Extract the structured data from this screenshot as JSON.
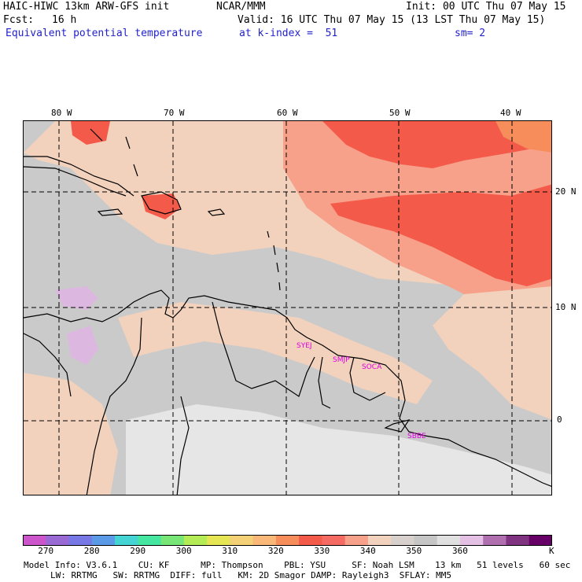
{
  "header": {
    "model": "HAIC-HIWC 13km ARW-GFS init",
    "org": "NCAR/MMM",
    "init": "Init: 00 UTC Thu 07 May 15",
    "fcst_label": "Fcst:",
    "fcst_value": "16 h",
    "valid": "Valid: 16 UTC Thu 07 May 15 (13 LST Thu 07 May 15)",
    "field": "Equivalent potential temperature",
    "level": "at k-index =  51",
    "smooth": "sm= 2"
  },
  "map": {
    "lon_labels": [
      "80 W",
      "70 W",
      "60 W",
      "50 W",
      "40 W"
    ],
    "lat_labels": [
      "20 N",
      "10 N",
      "0"
    ],
    "stations": [
      "SYEJ",
      "SMJP",
      "SOCA",
      "SBBE"
    ]
  },
  "colorbar": {
    "colors": [
      "#cc55cc",
      "#9a6ad4",
      "#7777e6",
      "#5a9ae6",
      "#44d4d4",
      "#44e6a0",
      "#77e677",
      "#b4ec55",
      "#e6e655",
      "#f4d077",
      "#f9b877",
      "#f78d5a",
      "#f45a4a",
      "#f66a64",
      "#f7a08a",
      "#f2d2bc",
      "#d8d0cc",
      "#c6c6c6",
      "#e0e0e0",
      "#e4c0e4",
      "#b070b0",
      "#803380",
      "#660066"
    ],
    "labels": [
      "270",
      "280",
      "290",
      "300",
      "310",
      "320",
      "330",
      "340",
      "350",
      "360"
    ],
    "units": "K"
  },
  "footer": {
    "line1": "Model Info: V3.6.1    CU: KF      MP: Thompson    PBL: YSU     SF: Noah LSM    13 km   51 levels   60 sec",
    "line2": "LW: RRTMG   SW: RRTMG  DIFF: full   KM: 2D Smagor DAMP: Rayleigh3  SFLAY: MM5"
  }
}
